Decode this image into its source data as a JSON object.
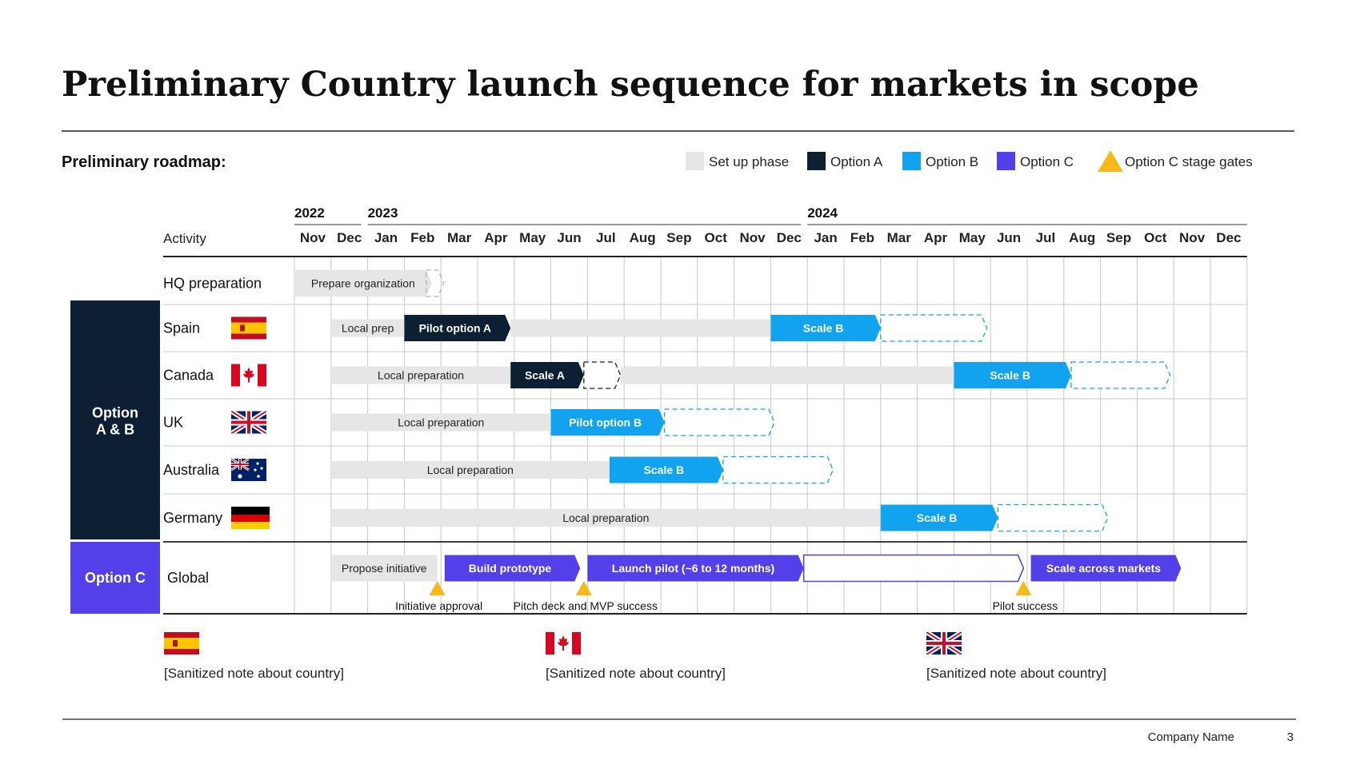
{
  "title": "Preliminary Country launch sequence for markets in scope",
  "subtitle": "Preliminary roadmap:",
  "legend": [
    {
      "label": "Set up phase",
      "color": "#e6e6e6",
      "shape": "square"
    },
    {
      "label": "Option A",
      "color": "#0c1f33",
      "shape": "square"
    },
    {
      "label": "Option B",
      "color": "#11a3ef",
      "shape": "square"
    },
    {
      "label": "Option C",
      "color": "#5340e8",
      "shape": "square"
    },
    {
      "label": "Option C stage gates",
      "color": "#f7b91a",
      "shape": "triangle"
    }
  ],
  "timeline": {
    "activity_header": "Activity",
    "years": [
      {
        "label": "2022",
        "start_month": 0
      },
      {
        "label": "2023",
        "start_month": 2
      },
      {
        "label": "2024",
        "start_month": 14
      }
    ],
    "months": [
      "Nov",
      "Dec",
      "Jan",
      "Feb",
      "Mar",
      "Apr",
      "May",
      "Jun",
      "Jul",
      "Aug",
      "Sep",
      "Oct",
      "Nov",
      "Dec",
      "Jan",
      "Feb",
      "Mar",
      "Apr",
      "May",
      "Jun",
      "Jul",
      "Aug",
      "Sep",
      "Oct",
      "Nov",
      "Dec"
    ]
  },
  "groups": [
    {
      "label": "Option A & B",
      "color": "#0c1f33",
      "rows": [
        1,
        5
      ]
    },
    {
      "label": "Option C",
      "color": "#5340e8",
      "rows": [
        6,
        6
      ]
    }
  ],
  "colors": {
    "setup": "#e6e6e6",
    "option_a": "#0c1f33",
    "option_b": "#11a3ef",
    "option_c": "#5340e8",
    "gate": "#f7b91a",
    "grid": "#c8c8c8",
    "rule": "#222222"
  },
  "rows": [
    {
      "label": "HQ preparation",
      "flag": null,
      "bars": [
        {
          "label": "Prepare organization",
          "start": 0,
          "end": 3.75,
          "kind": "setup",
          "style": "solid-then-dashed",
          "solid_end": 3.9
        }
      ]
    },
    {
      "label": "Spain",
      "flag": "spain-flag",
      "bars": [
        {
          "label": "Local prep",
          "start": 1,
          "end": 3,
          "kind": "setup",
          "style": "solid"
        },
        {
          "label": "Pilot option A",
          "start": 3,
          "end": 5.9,
          "kind": "option_a",
          "style": "solid"
        },
        {
          "label": "",
          "start": 5.9,
          "end": 13,
          "kind": "setup",
          "style": "solid"
        },
        {
          "label": "Scale B",
          "start": 13,
          "end": 16,
          "kind": "option_b",
          "style": "solid"
        },
        {
          "label": "",
          "start": 16,
          "end": 18.9,
          "kind": "option_b",
          "style": "dashed"
        }
      ]
    },
    {
      "label": "Canada",
      "flag": "canada-flag",
      "bars": [
        {
          "label": "Local preparation",
          "start": 1,
          "end": 5.9,
          "kind": "setup",
          "style": "solid"
        },
        {
          "label": "Scale A",
          "start": 5.9,
          "end": 7.9,
          "kind": "option_a",
          "style": "solid"
        },
        {
          "label": "",
          "start": 7.9,
          "end": 8.9,
          "kind": "option_a",
          "style": "dashed"
        },
        {
          "label": "",
          "start": 8.9,
          "end": 18,
          "kind": "setup",
          "style": "solid"
        },
        {
          "label": "Scale B",
          "start": 18,
          "end": 21.2,
          "kind": "option_b",
          "style": "solid"
        },
        {
          "label": "",
          "start": 21.2,
          "end": 23.9,
          "kind": "option_b",
          "style": "dashed"
        }
      ]
    },
    {
      "label": "UK",
      "flag": "uk-flag",
      "bars": [
        {
          "label": "Local preparation",
          "start": 1,
          "end": 7,
          "kind": "setup",
          "style": "solid"
        },
        {
          "label": "Pilot option B",
          "start": 7,
          "end": 10.1,
          "kind": "option_b",
          "style": "solid"
        },
        {
          "label": "",
          "start": 10.1,
          "end": 13.1,
          "kind": "option_b",
          "style": "dashed"
        }
      ]
    },
    {
      "label": "Australia",
      "flag": "australia-flag",
      "bars": [
        {
          "label": "Local preparation",
          "start": 1,
          "end": 8.6,
          "kind": "setup",
          "style": "solid"
        },
        {
          "label": "Scale B",
          "start": 8.6,
          "end": 11.7,
          "kind": "option_b",
          "style": "solid"
        },
        {
          "label": "",
          "start": 11.7,
          "end": 14.7,
          "kind": "option_b",
          "style": "dashed"
        }
      ]
    },
    {
      "label": "Germany",
      "flag": "germany-flag",
      "bars": [
        {
          "label": "Local preparation",
          "start": 1,
          "end": 16,
          "kind": "setup",
          "style": "solid"
        },
        {
          "label": "Scale B",
          "start": 16,
          "end": 19.2,
          "kind": "option_b",
          "style": "solid"
        },
        {
          "label": "",
          "start": 19.2,
          "end": 22.2,
          "kind": "option_b",
          "style": "dashed"
        }
      ]
    },
    {
      "label": "Global",
      "flag": null,
      "bars": [
        {
          "label": "Propose initiative",
          "start": 1,
          "end": 3.9,
          "kind": "setup",
          "style": "solid"
        },
        {
          "label": "Build prototype",
          "start": 4.1,
          "end": 7.8,
          "kind": "option_c",
          "style": "solid"
        },
        {
          "label": "Launch pilot (~6 to 12 months)",
          "start": 8,
          "end": 13.9,
          "kind": "option_c",
          "style": "solid"
        },
        {
          "label": "",
          "start": 13.9,
          "end": 19.9,
          "kind": "option_c",
          "style": "outline"
        },
        {
          "label": "Scale across markets",
          "start": 20.1,
          "end": 24.2,
          "kind": "option_c",
          "style": "solid"
        }
      ],
      "gates": [
        {
          "label": "Initiative approval",
          "at": 3.9
        },
        {
          "label": "Pitch deck and MVP success",
          "at": 7.9
        },
        {
          "label": "Pilot success",
          "at": 19.9
        }
      ]
    }
  ],
  "notes": [
    {
      "flag": "spain-flag",
      "text": "[Sanitized note about country]"
    },
    {
      "flag": "canada-flag",
      "text": "[Sanitized note about country]"
    },
    {
      "flag": "uk-flag",
      "text": "[Sanitized note about country]"
    }
  ],
  "footer": {
    "company": "Company Name",
    "page_number": "3"
  }
}
